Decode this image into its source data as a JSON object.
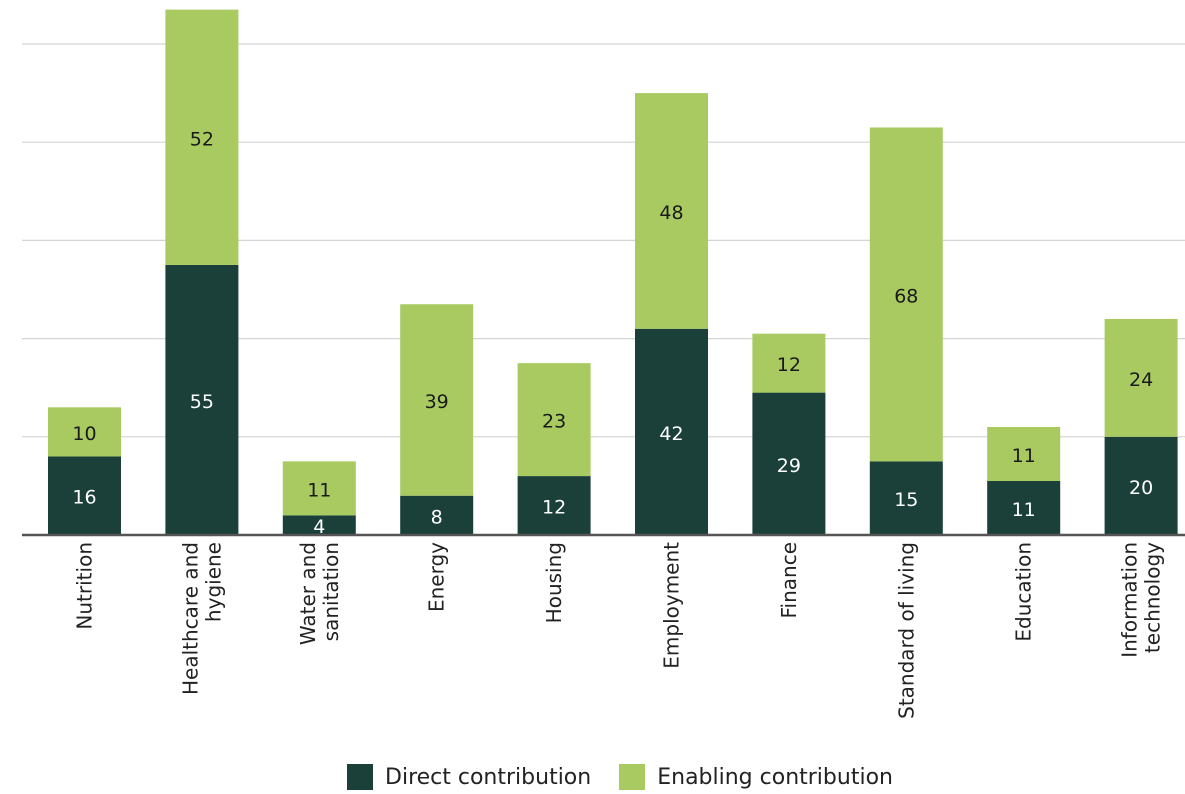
{
  "chart_data": {
    "type": "bar",
    "stacked": true,
    "categories": [
      [
        "Nutrition"
      ],
      [
        "Healthcare and",
        "hygiene"
      ],
      [
        "Water and",
        "sanitation"
      ],
      [
        "Energy"
      ],
      [
        "Housing"
      ],
      [
        "Employment"
      ],
      [
        "Finance"
      ],
      [
        "Standard of living"
      ],
      [
        "Education"
      ],
      [
        "Information",
        "technology"
      ]
    ],
    "series": [
      {
        "name": "Direct contribution",
        "color": "#1b4039",
        "label_color": "#ffffff",
        "values": [
          16,
          55,
          4,
          8,
          12,
          42,
          29,
          15,
          11,
          20
        ]
      },
      {
        "name": "Enabling contribution",
        "color": "#a8ca61",
        "label_color": "#1a1a1a",
        "values": [
          10,
          52,
          11,
          39,
          23,
          48,
          12,
          68,
          11,
          24
        ]
      }
    ],
    "ylim": [
      0,
      107
    ],
    "grid": true
  }
}
